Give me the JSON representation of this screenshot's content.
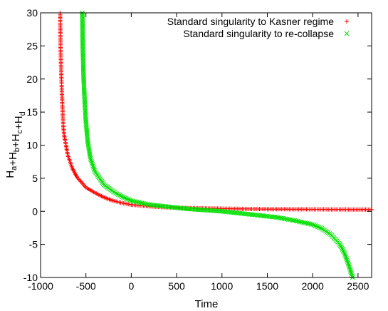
{
  "chart_data": {
    "type": "scatter",
    "xlabel": "Time",
    "ylabel": "H_a+H_b+H_c+H_d",
    "xlim": [
      -1000,
      2650
    ],
    "ylim": [
      -10,
      30
    ],
    "x_ticks": [
      "-1000",
      "-500",
      "0",
      "500",
      "1000",
      "1500",
      "2000",
      "2500"
    ],
    "y_ticks": [
      "-10",
      "-5",
      "0",
      "5",
      "10",
      "15",
      "20",
      "25",
      "30"
    ],
    "grid": false,
    "legend_position": "top-right",
    "series": [
      {
        "name": "Standard singularity to Kasner regime",
        "marker": "+",
        "color": "#ff0000",
        "points": [
          [
            -785,
            30
          ],
          [
            -780,
            25
          ],
          [
            -770,
            20
          ],
          [
            -760,
            16
          ],
          [
            -750,
            13
          ],
          [
            -740,
            11.5
          ],
          [
            -720,
            10
          ],
          [
            -700,
            8.5
          ],
          [
            -650,
            6.5
          ],
          [
            -600,
            5.2
          ],
          [
            -500,
            3.6
          ],
          [
            -400,
            2.8
          ],
          [
            -300,
            2.1
          ],
          [
            -200,
            1.6
          ],
          [
            -100,
            1.25
          ],
          [
            0,
            1.0
          ],
          [
            200,
            0.75
          ],
          [
            400,
            0.6
          ],
          [
            600,
            0.5
          ],
          [
            800,
            0.45
          ],
          [
            1000,
            0.4
          ],
          [
            1500,
            0.33
          ],
          [
            2000,
            0.3
          ],
          [
            2500,
            0.27
          ],
          [
            2650,
            0.26
          ]
        ]
      },
      {
        "name": "Standard singularity to re-collapse",
        "marker": "x",
        "color": "#00e000",
        "points": [
          [
            -540,
            30
          ],
          [
            -535,
            25
          ],
          [
            -525,
            20
          ],
          [
            -515,
            17
          ],
          [
            -500,
            13.5
          ],
          [
            -480,
            10.5
          ],
          [
            -450,
            8
          ],
          [
            -400,
            6
          ],
          [
            -300,
            4
          ],
          [
            -200,
            3
          ],
          [
            -100,
            2.2
          ],
          [
            0,
            1.6
          ],
          [
            200,
            1.0
          ],
          [
            400,
            0.7
          ],
          [
            600,
            0.4
          ],
          [
            800,
            0.2
          ],
          [
            1000,
            0.0
          ],
          [
            1200,
            -0.3
          ],
          [
            1400,
            -0.6
          ],
          [
            1600,
            -0.9
          ],
          [
            1800,
            -1.4
          ],
          [
            2000,
            -2.0
          ],
          [
            2100,
            -2.6
          ],
          [
            2200,
            -3.5
          ],
          [
            2300,
            -5.0
          ],
          [
            2350,
            -6.3
          ],
          [
            2400,
            -8.2
          ],
          [
            2440,
            -10
          ]
        ]
      }
    ]
  }
}
